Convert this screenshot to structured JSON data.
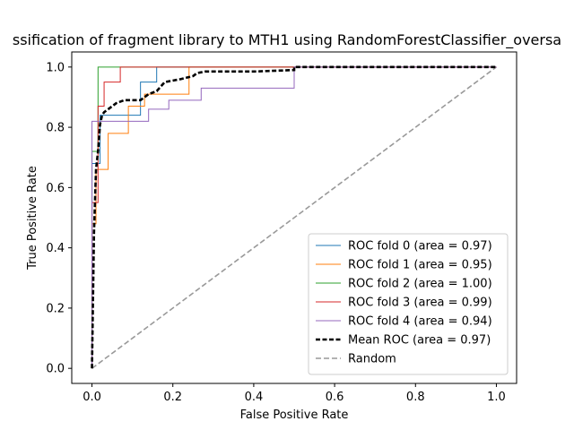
{
  "chart_data": {
    "type": "line",
    "title": "ssification of fragment library to MTH1 using RandomForestClassifier_oversa",
    "xlabel": "False Positive Rate",
    "ylabel": "True Positive Rate",
    "xlim": [
      -0.05,
      1.05
    ],
    "ylim": [
      -0.05,
      1.05
    ],
    "xticks": [
      0.0,
      0.2,
      0.4,
      0.6,
      0.8,
      1.0
    ],
    "yticks": [
      0.0,
      0.2,
      0.4,
      0.6,
      0.8,
      1.0
    ],
    "xtick_labels": [
      "0.0",
      "0.2",
      "0.4",
      "0.6",
      "0.8",
      "1.0"
    ],
    "ytick_labels": [
      "0.0",
      "0.2",
      "0.4",
      "0.6",
      "0.8",
      "1.0"
    ],
    "grid": false,
    "legend_position": "lower-right",
    "series": [
      {
        "name": "ROC fold 0 (area = 0.97)",
        "color": "#1f77b4",
        "style": "solid",
        "x": [
          0.0,
          0.0,
          0.02,
          0.02,
          0.05,
          0.05,
          0.12,
          0.12,
          0.14,
          0.14,
          0.16,
          0.16,
          1.0
        ],
        "y": [
          0.0,
          0.68,
          0.68,
          0.84,
          0.84,
          0.84,
          0.84,
          0.95,
          0.95,
          0.95,
          0.95,
          1.0,
          1.0
        ]
      },
      {
        "name": "ROC fold 1 (area = 0.95)",
        "color": "#ff7f0e",
        "style": "solid",
        "x": [
          0.0,
          0.0,
          0.01,
          0.01,
          0.04,
          0.04,
          0.09,
          0.09,
          0.13,
          0.13,
          0.24,
          0.24,
          1.0
        ],
        "y": [
          0.0,
          0.48,
          0.48,
          0.66,
          0.66,
          0.78,
          0.78,
          0.87,
          0.87,
          0.91,
          0.91,
          1.0,
          1.0
        ]
      },
      {
        "name": "ROC fold 2 (area = 1.00)",
        "color": "#2ca02c",
        "style": "solid",
        "x": [
          0.0,
          0.0,
          0.015,
          0.015,
          1.0
        ],
        "y": [
          0.0,
          0.72,
          0.72,
          1.0,
          1.0
        ]
      },
      {
        "name": "ROC fold 3 (area = 0.99)",
        "color": "#d62728",
        "style": "solid",
        "x": [
          0.0,
          0.0,
          0.015,
          0.015,
          0.03,
          0.03,
          0.07,
          0.07,
          1.0
        ],
        "y": [
          0.0,
          0.55,
          0.55,
          0.87,
          0.87,
          0.95,
          0.95,
          1.0,
          1.0
        ]
      },
      {
        "name": "ROC fold 4 (area = 0.94)",
        "color": "#9467bd",
        "style": "solid",
        "x": [
          0.0,
          0.0,
          0.02,
          0.02,
          0.14,
          0.14,
          0.19,
          0.19,
          0.27,
          0.27,
          0.5,
          0.5,
          1.0
        ],
        "y": [
          0.0,
          0.82,
          0.82,
          0.82,
          0.82,
          0.86,
          0.86,
          0.89,
          0.89,
          0.93,
          0.93,
          1.0,
          1.0
        ]
      },
      {
        "name": "Mean ROC (area = 0.97)",
        "color": "#000000",
        "style": "dashed-bold",
        "x": [
          0.0,
          0.005,
          0.01,
          0.015,
          0.02,
          0.025,
          0.03,
          0.04,
          0.05,
          0.06,
          0.08,
          0.1,
          0.12,
          0.14,
          0.16,
          0.18,
          0.22,
          0.25,
          0.26,
          0.28,
          0.3,
          0.4,
          0.5,
          0.5,
          1.0
        ],
        "y": [
          0.0,
          0.45,
          0.66,
          0.72,
          0.81,
          0.84,
          0.85,
          0.86,
          0.87,
          0.88,
          0.89,
          0.89,
          0.89,
          0.91,
          0.92,
          0.95,
          0.96,
          0.97,
          0.98,
          0.985,
          0.985,
          0.985,
          0.99,
          1.0,
          1.0
        ]
      },
      {
        "name": "Random",
        "color": "#999999",
        "style": "dashed",
        "x": [
          0.0,
          1.0
        ],
        "y": [
          0.0,
          1.0
        ]
      }
    ]
  }
}
